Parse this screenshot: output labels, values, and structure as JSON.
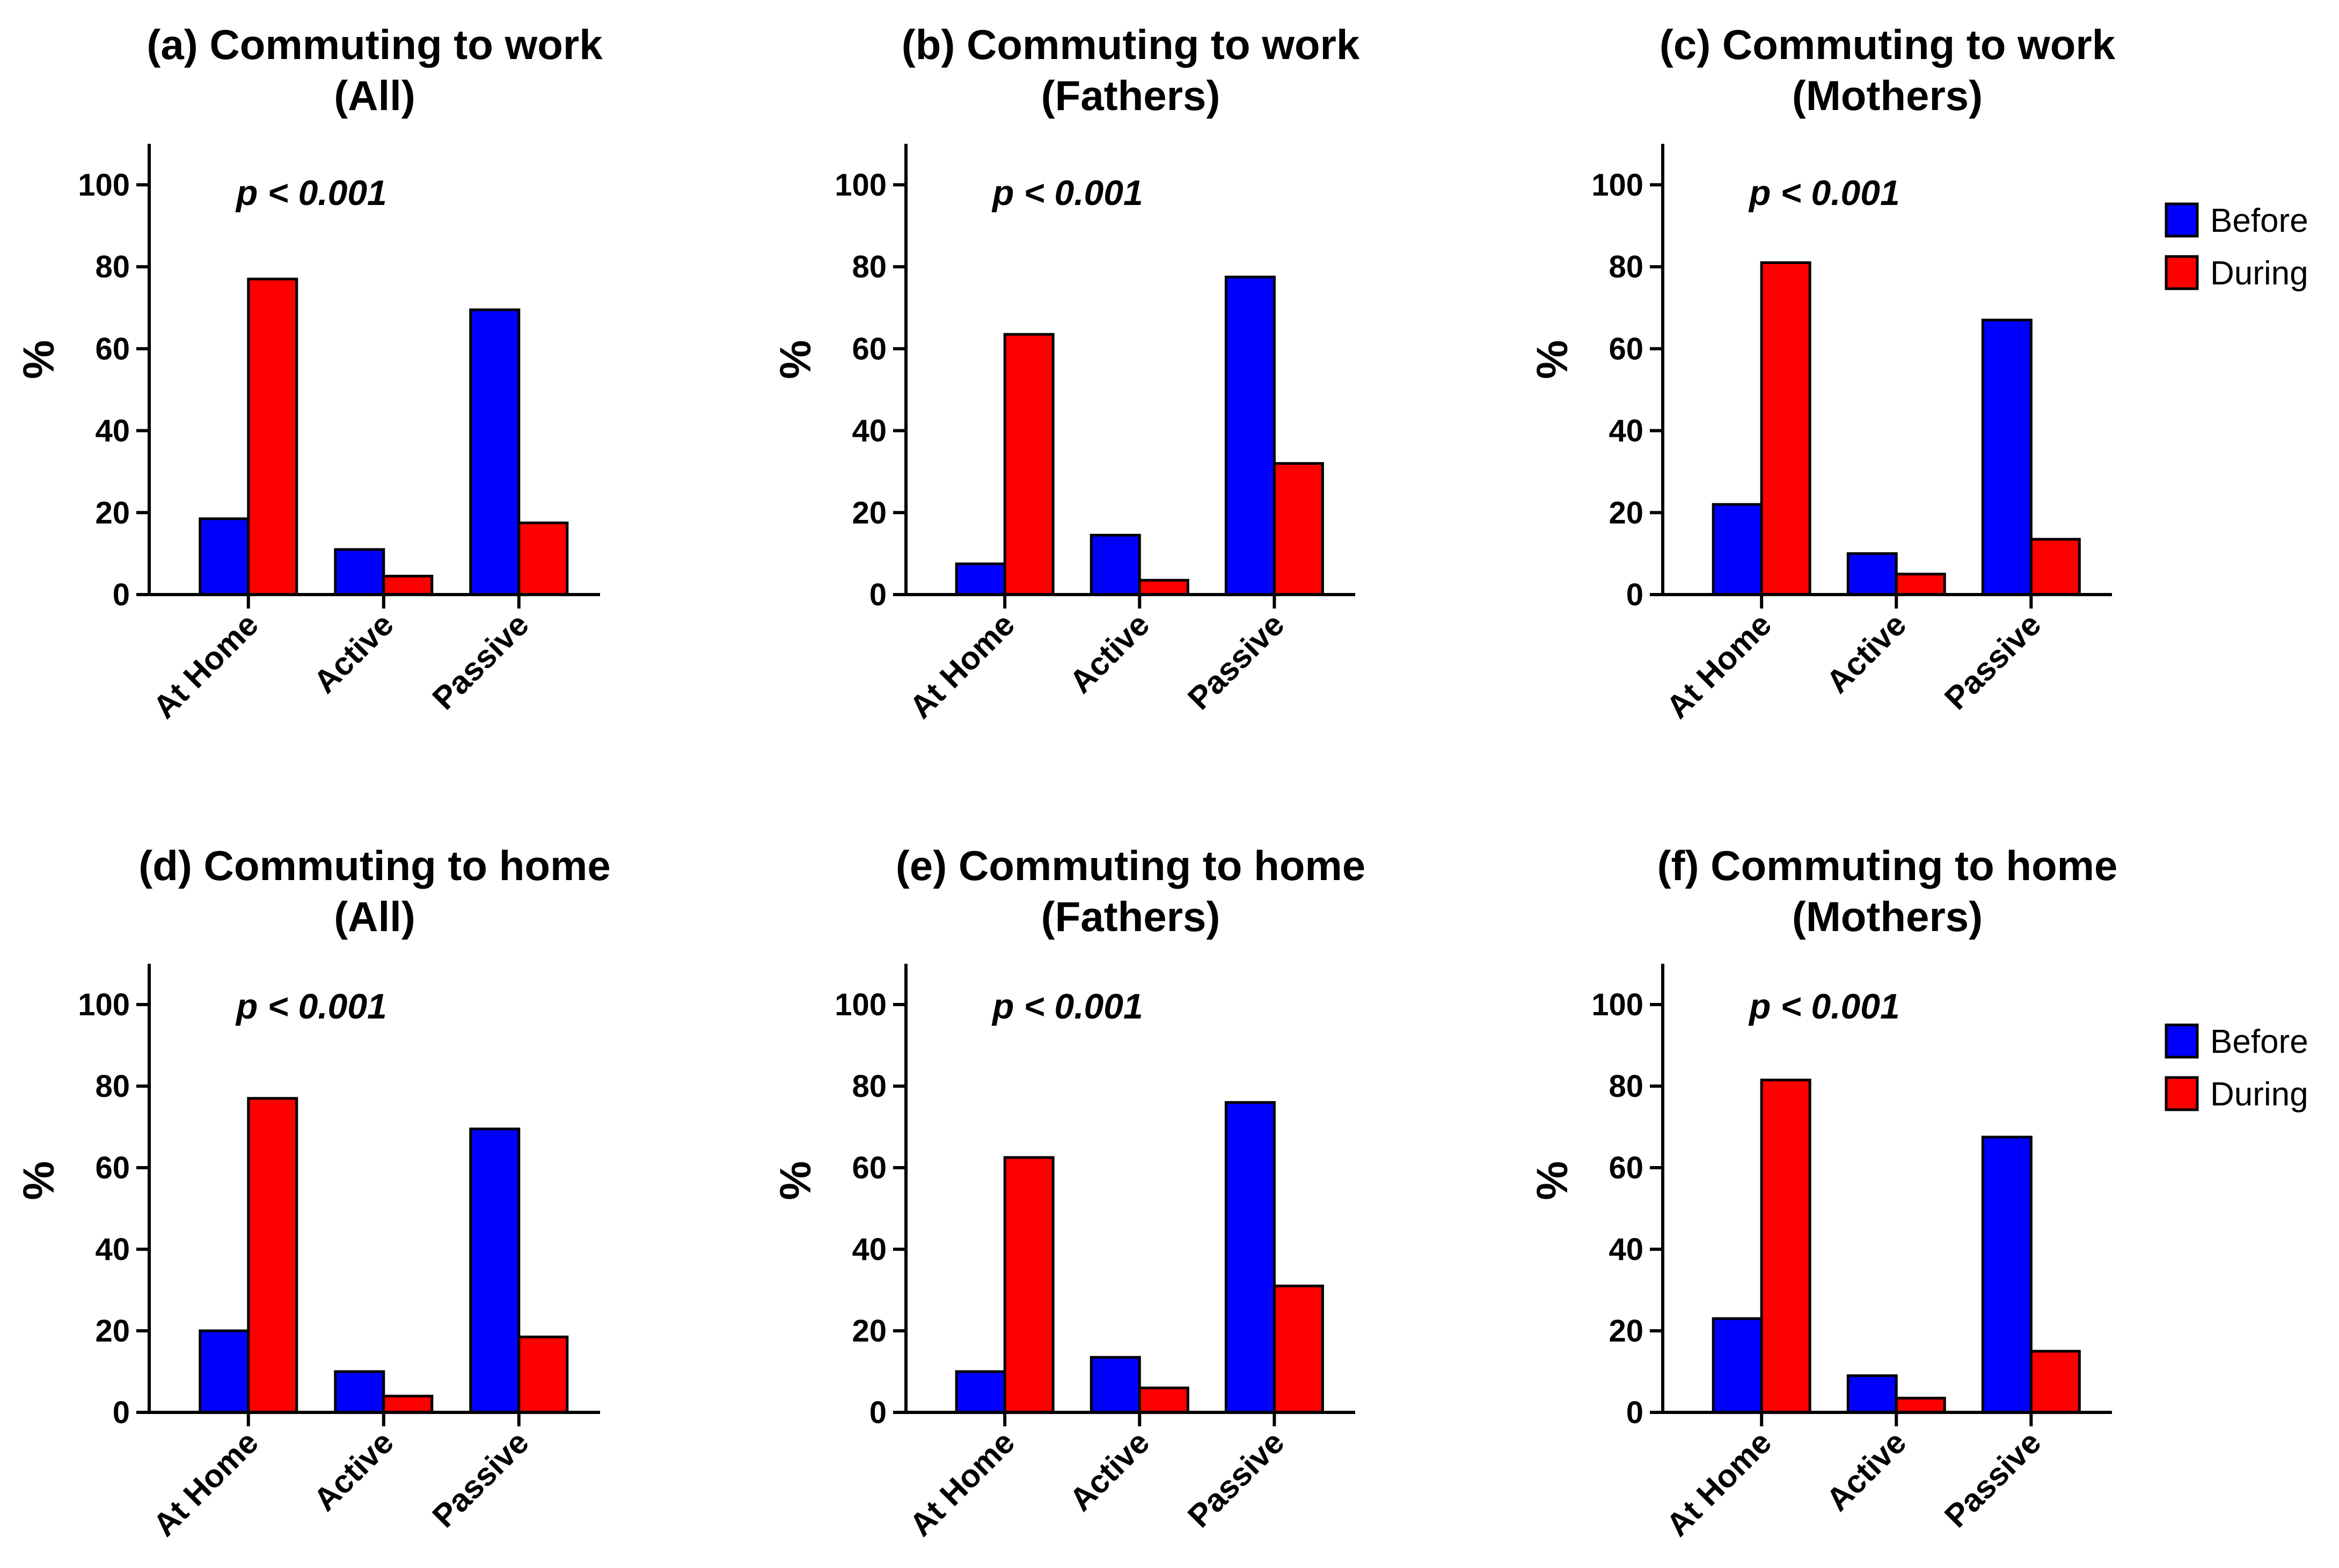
{
  "colors": {
    "before": "#0000ff",
    "during": "#ff0000",
    "axis": "#000000"
  },
  "legend": {
    "before": "Before",
    "during": "During"
  },
  "chart_data": [
    {
      "type": "bar",
      "title_line1": "(a) Commuting to work",
      "title_line2": "(All)",
      "categories": [
        "At Home",
        "Active",
        "Passive"
      ],
      "series": [
        {
          "name": "Before",
          "values": [
            18.5,
            11,
            69.5
          ]
        },
        {
          "name": "During",
          "values": [
            77,
            4.5,
            17.5
          ]
        }
      ],
      "ylabel": "%",
      "ylim": [
        0,
        110
      ],
      "yticks": [
        0,
        20,
        40,
        60,
        80,
        100
      ],
      "yticks_labels": [
        "0",
        "20",
        "40",
        "60",
        "80",
        "100"
      ],
      "annotation": "p < 0.001"
    },
    {
      "type": "bar",
      "title_line1": "(b) Commuting to work",
      "title_line2": "(Fathers)",
      "categories": [
        "At Home",
        "Active",
        "Passive"
      ],
      "series": [
        {
          "name": "Before",
          "values": [
            7.5,
            14.5,
            77.5
          ]
        },
        {
          "name": "During",
          "values": [
            63.5,
            3.5,
            32
          ]
        }
      ],
      "ylabel": "%",
      "ylim": [
        0,
        110
      ],
      "yticks": [
        0,
        20,
        40,
        60,
        80,
        100
      ],
      "yticks_labels": [
        "0",
        "20",
        "40",
        "60",
        "80",
        "100"
      ],
      "annotation": "p < 0.001"
    },
    {
      "type": "bar",
      "title_line1": "(c) Commuting to work",
      "title_line2": "(Mothers)",
      "categories": [
        "At Home",
        "Active",
        "Passive"
      ],
      "series": [
        {
          "name": "Before",
          "values": [
            22,
            10,
            67
          ]
        },
        {
          "name": "During",
          "values": [
            81,
            5,
            13.5
          ]
        }
      ],
      "ylabel": "%",
      "ylim": [
        0,
        110
      ],
      "yticks": [
        0,
        20,
        40,
        60,
        80,
        100
      ],
      "yticks_labels": [
        "0",
        "20",
        "40",
        "60",
        "80",
        "100"
      ],
      "annotation": "p < 0.001"
    },
    {
      "type": "bar",
      "title_line1": "(d) Commuting to home",
      "title_line2": "(All)",
      "categories": [
        "At Home",
        "Active",
        "Passive"
      ],
      "series": [
        {
          "name": "Before",
          "values": [
            20,
            10,
            69.5
          ]
        },
        {
          "name": "During",
          "values": [
            77,
            4,
            18.5
          ]
        }
      ],
      "ylabel": "%",
      "ylim": [
        0,
        110
      ],
      "yticks": [
        0,
        20,
        40,
        60,
        80,
        100
      ],
      "yticks_labels": [
        "0",
        "20",
        "40",
        "60",
        "80",
        "100"
      ],
      "annotation": "p < 0.001"
    },
    {
      "type": "bar",
      "title_line1": "(e) Commuting to home",
      "title_line2": "(Fathers)",
      "categories": [
        "At Home",
        "Active",
        "Passive"
      ],
      "series": [
        {
          "name": "Before",
          "values": [
            10,
            13.5,
            76
          ]
        },
        {
          "name": "During",
          "values": [
            62.5,
            6,
            31
          ]
        }
      ],
      "ylabel": "%",
      "ylim": [
        0,
        110
      ],
      "yticks": [
        0,
        20,
        40,
        60,
        80,
        100
      ],
      "yticks_labels": [
        "0",
        "20",
        "40",
        "60",
        "80",
        "100"
      ],
      "annotation": "p < 0.001"
    },
    {
      "type": "bar",
      "title_line1": "(f) Commuting to home",
      "title_line2": "(Mothers)",
      "categories": [
        "At Home",
        "Active",
        "Passive"
      ],
      "series": [
        {
          "name": "Before",
          "values": [
            23,
            9,
            67.5
          ]
        },
        {
          "name": "During",
          "values": [
            81.5,
            3.5,
            15
          ]
        }
      ],
      "ylabel": "%",
      "ylim": [
        0,
        110
      ],
      "yticks": [
        0,
        20,
        40,
        60,
        80,
        100
      ],
      "yticks_labels": [
        "0",
        "20",
        "40",
        "60",
        "80",
        "100"
      ],
      "annotation": "p < 0.001"
    }
  ]
}
